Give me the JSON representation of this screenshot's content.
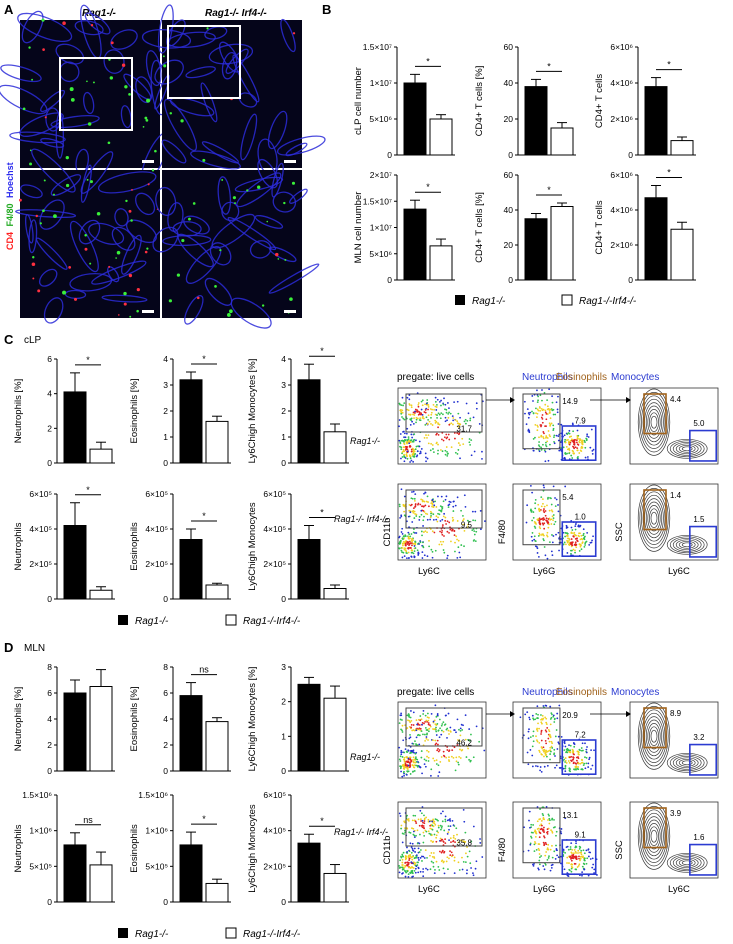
{
  "panels": {
    "A": {
      "label": "A",
      "col1": "Rag1-/-",
      "col2": "Rag1-/- Irf4-/-",
      "stain": [
        "CD4",
        "F4/80",
        "Hoechst"
      ],
      "stain_colors": [
        "#ff2020",
        "#22dd22",
        "#3a3aff"
      ]
    },
    "B": {
      "label": "B"
    },
    "C": {
      "label": "C",
      "tissue": "cLP"
    },
    "D": {
      "label": "D",
      "tissue": "MLN"
    }
  },
  "legend": {
    "black_label": "Rag1-/-",
    "white_label": "Rag1-/-Irf4-/-"
  },
  "colors": {
    "bar_black": "#000000",
    "bar_white": "#ffffff",
    "gate_blue": "#2b3bd1",
    "gate_brown": "#a0621b",
    "gate_gray": "#555555"
  },
  "chart_data": [
    {
      "panel": "B",
      "type": "bar",
      "ylabel": "cLP cell number",
      "categories": [
        "Rag1-/-",
        "Rag1-/-Irf4-/-"
      ],
      "values": [
        10000000,
        5000000
      ],
      "errors": [
        1200000,
        600000
      ],
      "yticks": [
        "0",
        "5×10⁶",
        "1×10⁷",
        "1.5×10⁷"
      ],
      "ylim": [
        0,
        15000000
      ],
      "significance": "*"
    },
    {
      "panel": "B",
      "type": "bar",
      "ylabel": "CD4+ T cells [%]",
      "categories": [
        "Rag1-/-",
        "Rag1-/-Irf4-/-"
      ],
      "values": [
        38,
        15
      ],
      "errors": [
        4,
        3
      ],
      "yticks": [
        "0",
        "20",
        "40",
        "60"
      ],
      "ylim": [
        0,
        60
      ],
      "significance": "*"
    },
    {
      "panel": "B",
      "type": "bar",
      "ylabel": "CD4+ T cells",
      "categories": [
        "Rag1-/-",
        "Rag1-/-Irf4-/-"
      ],
      "values": [
        3800000,
        800000
      ],
      "errors": [
        500000,
        200000
      ],
      "yticks": [
        "0",
        "2×10⁶",
        "4×10⁶",
        "6×10⁶"
      ],
      "ylim": [
        0,
        6000000
      ],
      "significance": "*"
    },
    {
      "panel": "B",
      "type": "bar",
      "ylabel": "MLN cell number",
      "categories": [
        "Rag1-/-",
        "Rag1-/-Irf4-/-"
      ],
      "values": [
        13500000,
        6500000
      ],
      "errors": [
        1700000,
        1300000
      ],
      "yticks": [
        "0",
        "5×10⁶",
        "1×10⁷",
        "1.5×10⁷",
        "2×10⁷"
      ],
      "ylim": [
        0,
        20000000
      ],
      "significance": "*"
    },
    {
      "panel": "B",
      "type": "bar",
      "ylabel": "CD4+ T cells [%]",
      "categories": [
        "Rag1-/-",
        "Rag1-/-Irf4-/-"
      ],
      "values": [
        35,
        42
      ],
      "errors": [
        3,
        2
      ],
      "yticks": [
        "0",
        "20",
        "40",
        "60"
      ],
      "ylim": [
        0,
        60
      ],
      "significance": "*"
    },
    {
      "panel": "B",
      "type": "bar",
      "ylabel": "CD4+ T cells",
      "categories": [
        "Rag1-/-",
        "Rag1-/-Irf4-/-"
      ],
      "values": [
        4700000,
        2900000
      ],
      "errors": [
        700000,
        400000
      ],
      "yticks": [
        "0",
        "2×10⁶",
        "4×10⁶",
        "6×10⁶"
      ],
      "ylim": [
        0,
        6000000
      ],
      "significance": "*"
    },
    {
      "panel": "C",
      "type": "bar",
      "ylabel": "Neutrophils [%]",
      "categories": [
        "Rag1-/-",
        "Rag1-/-Irf4-/-"
      ],
      "values": [
        4.1,
        0.8
      ],
      "errors": [
        1.1,
        0.4
      ],
      "yticks": [
        "0",
        "2",
        "4",
        "6"
      ],
      "ylim": [
        0,
        6
      ],
      "significance": "*"
    },
    {
      "panel": "C",
      "type": "bar",
      "ylabel": "Eosinophils [%]",
      "categories": [
        "Rag1-/-",
        "Rag1-/-Irf4-/-"
      ],
      "values": [
        3.2,
        1.6
      ],
      "errors": [
        0.3,
        0.2
      ],
      "yticks": [
        "0",
        "1",
        "2",
        "3",
        "4"
      ],
      "ylim": [
        0,
        4
      ],
      "significance": "*"
    },
    {
      "panel": "C",
      "type": "bar",
      "ylabel": "Ly6Chigh Monocytes [%]",
      "categories": [
        "Rag1-/-",
        "Rag1-/-Irf4-/-"
      ],
      "values": [
        3.2,
        1.2
      ],
      "errors": [
        0.6,
        0.3
      ],
      "yticks": [
        "0",
        "1",
        "2",
        "3",
        "4"
      ],
      "ylim": [
        0,
        4
      ],
      "significance": "*"
    },
    {
      "panel": "C",
      "type": "bar",
      "ylabel": "Neutrophils",
      "categories": [
        "Rag1-/-",
        "Rag1-/-Irf4-/-"
      ],
      "values": [
        420000,
        50000
      ],
      "errors": [
        130000,
        20000
      ],
      "yticks": [
        "0",
        "2×10⁵",
        "4×10⁵",
        "6×10⁵"
      ],
      "ylim": [
        0,
        600000
      ],
      "significance": "*"
    },
    {
      "panel": "C",
      "type": "bar",
      "ylabel": "Eosinophils",
      "categories": [
        "Rag1-/-",
        "Rag1-/-Irf4-/-"
      ],
      "values": [
        340000,
        80000
      ],
      "errors": [
        60000,
        10000
      ],
      "yticks": [
        "0",
        "2×10⁵",
        "4×10⁵",
        "6×10⁵"
      ],
      "ylim": [
        0,
        600000
      ],
      "significance": "*"
    },
    {
      "panel": "C",
      "type": "bar",
      "ylabel": "Ly6Chigh Monocytes",
      "categories": [
        "Rag1-/-",
        "Rag1-/-Irf4-/-"
      ],
      "values": [
        340000,
        60000
      ],
      "errors": [
        80000,
        20000
      ],
      "yticks": [
        "0",
        "2×10⁵",
        "4×10⁵",
        "6×10⁵"
      ],
      "ylim": [
        0,
        600000
      ],
      "significance": "*"
    },
    {
      "panel": "D",
      "type": "bar",
      "ylabel": "Neutrophils [%]",
      "categories": [
        "Rag1-/-",
        "Rag1-/-Irf4-/-"
      ],
      "values": [
        6.0,
        6.5
      ],
      "errors": [
        1.0,
        1.3
      ],
      "yticks": [
        "0",
        "2",
        "4",
        "6",
        "8"
      ],
      "ylim": [
        0,
        8
      ],
      "significance": ""
    },
    {
      "panel": "D",
      "type": "bar",
      "ylabel": "Eosinophils [%]",
      "categories": [
        "Rag1-/-",
        "Rag1-/-Irf4-/-"
      ],
      "values": [
        5.8,
        3.8
      ],
      "errors": [
        1.0,
        0.3
      ],
      "yticks": [
        "0",
        "2",
        "4",
        "6",
        "8"
      ],
      "ylim": [
        0,
        8
      ],
      "significance": "ns"
    },
    {
      "panel": "D",
      "type": "bar",
      "ylabel": "Ly6Chigh Monocytes [%]",
      "categories": [
        "Rag1-/-",
        "Rag1-/-Irf4-/-"
      ],
      "values": [
        2.5,
        2.1
      ],
      "errors": [
        0.2,
        0.35
      ],
      "yticks": [
        "0",
        "1",
        "2",
        "3"
      ],
      "ylim": [
        0,
        3
      ],
      "significance": ""
    },
    {
      "panel": "D",
      "type": "bar",
      "ylabel": "Neutrophils",
      "categories": [
        "Rag1-/-",
        "Rag1-/-Irf4-/-"
      ],
      "values": [
        800000,
        520000
      ],
      "errors": [
        170000,
        180000
      ],
      "yticks": [
        "0",
        "5×10⁵",
        "1×10⁶",
        "1.5×10⁶"
      ],
      "ylim": [
        0,
        1500000
      ],
      "significance": "ns"
    },
    {
      "panel": "D",
      "type": "bar",
      "ylabel": "Eosinophils",
      "categories": [
        "Rag1-/-",
        "Rag1-/-Irf4-/-"
      ],
      "values": [
        800000,
        260000
      ],
      "errors": [
        180000,
        60000
      ],
      "yticks": [
        "0",
        "5×10⁵",
        "1×10⁶",
        "1.5×10⁶"
      ],
      "ylim": [
        0,
        1500000
      ],
      "significance": "*"
    },
    {
      "panel": "D",
      "type": "bar",
      "ylabel": "Ly6Chigh Monocytes",
      "categories": [
        "Rag1-/-",
        "Rag1-/-Irf4-/-"
      ],
      "values": [
        330000,
        160000
      ],
      "errors": [
        50000,
        50000
      ],
      "yticks": [
        "0",
        "2×10⁵",
        "4×10⁵",
        "6×10⁵"
      ],
      "ylim": [
        0,
        600000
      ],
      "significance": "*"
    }
  ],
  "flow": {
    "C": {
      "header_pregate": "pregate: live cells",
      "header_neutrophils": "Neutrophils",
      "header_eosinophils": "Eosinophils",
      "header_monocytes": "Monocytes",
      "row_labels": [
        "Rag1-/-",
        "Rag1-/- Irf4-/-"
      ],
      "axes": {
        "col1_x": "Ly6C",
        "col1_y": "CD11b",
        "col2_x": "Ly6G",
        "col2_y": "F4/80",
        "col3_x": "Ly6C",
        "col3_y": "SSC"
      },
      "gates": [
        {
          "col1_top": "31.7",
          "col2_neu": "14.9",
          "col2_blue": "7.9",
          "col3_eos": "4.4",
          "col3_mono": "5.0"
        },
        {
          "col1_top": "9.5",
          "col2_neu": "5.4",
          "col2_blue": "1.0",
          "col3_eos": "1.4",
          "col3_mono": "1.5"
        }
      ]
    },
    "D": {
      "header_pregate": "pregate: live cells",
      "header_neutrophils": "Neutrophils",
      "header_eosinophils": "Eosinophils",
      "header_monocytes": "Monocytes",
      "row_labels": [
        "Rag1-/-",
        "Rag1-/- Irf4-/-"
      ],
      "axes": {
        "col1_x": "Ly6C",
        "col1_y": "CD11b",
        "col2_x": "Ly6G",
        "col2_y": "F4/80",
        "col3_x": "Ly6C",
        "col3_y": "SSC"
      },
      "gates": [
        {
          "col1_top": "46.2",
          "col2_neu": "20.9",
          "col2_blue": "7.2",
          "col3_eos": "8.9",
          "col3_mono": "3.2"
        },
        {
          "col1_top": "35.8",
          "col2_neu": "13.1",
          "col2_blue": "9.1",
          "col3_eos": "3.9",
          "col3_mono": "1.6"
        }
      ]
    }
  }
}
